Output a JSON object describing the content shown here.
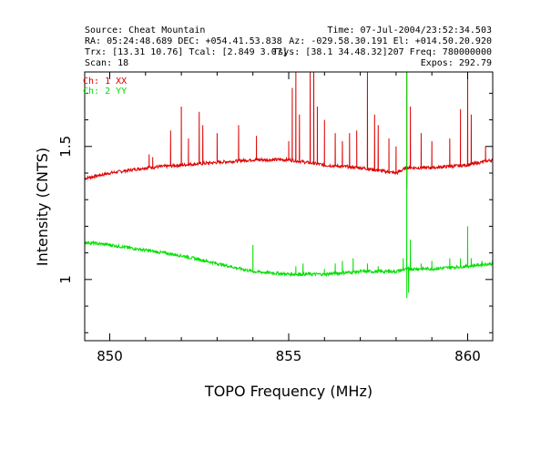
{
  "header": {
    "line1_left": "Source: Cheat Mountain",
    "line1_right": "Time: 07-Jul-2004/23:52:34.503",
    "line2_left": "RA: 05:24:48.689 DEC: +054.41.53.838",
    "line2_right": "Az: -029.58.30.191 El: +014.50.20.920",
    "line3_left": "Trx: [13.31 10.76]  Tcal: [2.849 3.07]",
    "line3_right": "Tsys: [38.1 34.48.32]207 Freq: 780000000",
    "line4_left": "Scan: 18",
    "line4_right": "Expos: 292.79"
  },
  "colors": {
    "ch1": "#dd0000",
    "ch2": "#00dd00",
    "frame": "#000000",
    "background": "#ffffff"
  },
  "chart_data": {
    "type": "line",
    "title": "",
    "xlabel": "TOPO Frequency (MHz)",
    "ylabel": "Intensity (CNTS)",
    "xlim": [
      849.3,
      860.7
    ],
    "ylim": [
      0.77,
      1.78
    ],
    "xticks": [
      {
        "value": 850,
        "label": "850"
      },
      {
        "value": 855,
        "label": "855"
      },
      {
        "value": 860,
        "label": "860"
      }
    ],
    "yticks": [
      {
        "value": 1.0,
        "label": "1"
      },
      {
        "value": 1.5,
        "label": "1.5"
      }
    ],
    "grid": false,
    "legend_placement": "top-left",
    "series": [
      {
        "name": "Ch: 1 XX",
        "color": "#dd0000",
        "baseline": [
          [
            849.3,
            1.38
          ],
          [
            850.0,
            1.4
          ],
          [
            851.0,
            1.42
          ],
          [
            852.0,
            1.43
          ],
          [
            853.0,
            1.44
          ],
          [
            854.0,
            1.45
          ],
          [
            855.0,
            1.45
          ],
          [
            856.0,
            1.43
          ],
          [
            857.0,
            1.42
          ],
          [
            858.0,
            1.4
          ],
          [
            858.3,
            1.42
          ],
          [
            859.0,
            1.42
          ],
          [
            860.0,
            1.43
          ],
          [
            860.7,
            1.45
          ]
        ],
        "spikes": [
          [
            851.1,
            1.47
          ],
          [
            851.2,
            1.46
          ],
          [
            851.7,
            1.56
          ],
          [
            852.0,
            1.65
          ],
          [
            852.2,
            1.53
          ],
          [
            852.5,
            1.63
          ],
          [
            852.6,
            1.58
          ],
          [
            853.0,
            1.55
          ],
          [
            853.6,
            1.58
          ],
          [
            854.1,
            1.54
          ],
          [
            855.0,
            1.52
          ],
          [
            855.1,
            1.72
          ],
          [
            855.2,
            1.78
          ],
          [
            855.3,
            1.62
          ],
          [
            855.6,
            1.78
          ],
          [
            855.7,
            1.78
          ],
          [
            855.8,
            1.65
          ],
          [
            856.0,
            1.6
          ],
          [
            856.3,
            1.55
          ],
          [
            856.5,
            1.52
          ],
          [
            856.7,
            1.55
          ],
          [
            856.9,
            1.56
          ],
          [
            857.2,
            1.78
          ],
          [
            857.4,
            1.62
          ],
          [
            857.5,
            1.58
          ],
          [
            857.8,
            1.53
          ],
          [
            858.0,
            1.5
          ],
          [
            858.3,
            1.78
          ],
          [
            858.4,
            1.65
          ],
          [
            858.7,
            1.55
          ],
          [
            859.0,
            1.52
          ],
          [
            859.5,
            1.53
          ],
          [
            859.8,
            1.64
          ],
          [
            860.0,
            1.78
          ],
          [
            860.1,
            1.62
          ],
          [
            860.5,
            1.5
          ]
        ],
        "dips": [
          [
            858.3,
            1.34
          ]
        ]
      },
      {
        "name": "Ch: 2 YY",
        "color": "#00dd00",
        "baseline": [
          [
            849.3,
            1.14
          ],
          [
            850.0,
            1.13
          ],
          [
            851.0,
            1.11
          ],
          [
            852.0,
            1.09
          ],
          [
            853.0,
            1.06
          ],
          [
            854.0,
            1.03
          ],
          [
            855.0,
            1.02
          ],
          [
            856.0,
            1.02
          ],
          [
            857.0,
            1.03
          ],
          [
            858.0,
            1.03
          ],
          [
            858.3,
            1.04
          ],
          [
            859.0,
            1.04
          ],
          [
            860.0,
            1.05
          ],
          [
            860.7,
            1.06
          ]
        ],
        "spikes": [
          [
            854.0,
            1.13
          ],
          [
            855.2,
            1.05
          ],
          [
            855.4,
            1.06
          ],
          [
            856.0,
            1.04
          ],
          [
            856.3,
            1.06
          ],
          [
            856.5,
            1.07
          ],
          [
            856.8,
            1.08
          ],
          [
            857.2,
            1.06
          ],
          [
            857.5,
            1.05
          ],
          [
            857.8,
            1.04
          ],
          [
            858.2,
            1.08
          ],
          [
            858.3,
            1.78
          ],
          [
            858.4,
            1.15
          ],
          [
            858.7,
            1.06
          ],
          [
            859.0,
            1.07
          ],
          [
            859.5,
            1.08
          ],
          [
            859.8,
            1.08
          ],
          [
            860.0,
            1.2
          ],
          [
            860.1,
            1.08
          ],
          [
            860.4,
            1.07
          ]
        ],
        "dips": [
          [
            858.3,
            0.93
          ],
          [
            858.35,
            0.95
          ]
        ]
      }
    ]
  }
}
